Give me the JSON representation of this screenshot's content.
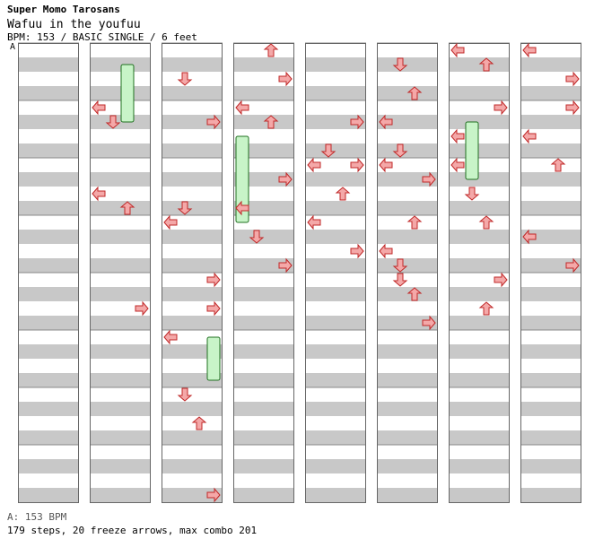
{
  "header": {
    "artist": "Super Momo Tarosans",
    "song": "Wafuu in the youfuu",
    "info": "BPM: 153 / BASIC SINGLE / 6 feet",
    "bpm_marker": "A"
  },
  "footer": {
    "bpm": "A: 153 BPM",
    "stats": "179 steps, 20 freeze arrows, max combo 201"
  },
  "colors": {
    "stripe": "#c8c8c8",
    "arrow_red": "#f4a8a8",
    "arrow_red_stroke": "#c02828",
    "arrow_blue": "#88c4f4",
    "arrow_pink": "#f0b8f0",
    "freeze_fill": "#c8f4c8",
    "freeze_stroke": "#207020"
  },
  "chart_data": {
    "type": "step-chart",
    "columns": 8,
    "measures_per_column": 8,
    "lanes": [
      "left",
      "down",
      "up",
      "right"
    ],
    "arrows": [
      [
        1,
        1,
        0,
        0.0
      ],
      [
        1,
        1,
        1,
        0.25
      ],
      [
        1,
        2,
        0,
        0.5
      ],
      [
        1,
        2,
        2,
        0.75
      ],
      [
        1,
        4,
        3,
        0.5
      ],
      [
        2,
        0,
        1,
        0.5
      ],
      [
        2,
        1,
        3,
        0.25
      ],
      [
        2,
        2,
        1,
        0.75
      ],
      [
        2,
        3,
        0,
        0.0
      ],
      [
        2,
        4,
        3,
        0.0
      ],
      [
        2,
        4,
        3,
        0.5
      ],
      [
        2,
        5,
        0,
        0.0
      ],
      [
        2,
        6,
        1,
        0.0
      ],
      [
        2,
        6,
        2,
        0.5
      ],
      [
        2,
        7,
        3,
        0.75
      ],
      [
        3,
        0,
        2,
        0.0
      ],
      [
        3,
        0,
        3,
        0.5
      ],
      [
        3,
        1,
        0,
        0.0
      ],
      [
        3,
        1,
        2,
        0.25
      ],
      [
        3,
        2,
        3,
        0.25
      ],
      [
        3,
        2,
        0,
        0.75
      ],
      [
        3,
        3,
        1,
        0.25
      ],
      [
        3,
        3,
        3,
        0.75
      ],
      [
        4,
        1,
        3,
        0.25
      ],
      [
        4,
        1,
        1,
        0.75
      ],
      [
        4,
        2,
        0,
        0.0
      ],
      [
        4,
        2,
        3,
        0.0
      ],
      [
        4,
        2,
        2,
        0.5
      ],
      [
        4,
        3,
        0,
        0.0
      ],
      [
        4,
        3,
        3,
        0.5
      ],
      [
        5,
        0,
        1,
        0.25
      ],
      [
        5,
        0,
        2,
        0.75
      ],
      [
        5,
        1,
        0,
        0.25
      ],
      [
        5,
        1,
        1,
        0.75
      ],
      [
        5,
        2,
        0,
        0.0
      ],
      [
        5,
        2,
        3,
        0.25
      ],
      [
        5,
        3,
        2,
        0.0
      ],
      [
        5,
        3,
        0,
        0.5
      ],
      [
        5,
        3,
        1,
        0.75
      ],
      [
        5,
        4,
        1,
        0.0
      ],
      [
        5,
        4,
        2,
        0.25
      ],
      [
        5,
        4,
        3,
        0.75
      ],
      [
        6,
        0,
        0,
        0.0
      ],
      [
        6,
        0,
        2,
        0.25
      ],
      [
        6,
        1,
        3,
        0.0
      ],
      [
        6,
        1,
        0,
        0.5
      ],
      [
        6,
        2,
        0,
        0.0
      ],
      [
        6,
        2,
        1,
        0.5
      ],
      [
        6,
        3,
        2,
        0.0
      ],
      [
        6,
        4,
        3,
        0.0
      ],
      [
        6,
        4,
        2,
        0.5
      ],
      [
        7,
        0,
        0,
        0.0
      ],
      [
        7,
        0,
        3,
        0.5
      ],
      [
        7,
        1,
        3,
        0.0
      ],
      [
        7,
        1,
        0,
        0.5
      ],
      [
        7,
        2,
        2,
        0.0
      ],
      [
        7,
        3,
        0,
        0.25
      ],
      [
        7,
        3,
        3,
        0.75
      ]
    ],
    "freezes": [
      [
        1,
        0,
        2,
        0.25,
        1.0
      ],
      [
        2,
        5,
        3,
        0.0,
        0.75
      ],
      [
        3,
        1,
        0,
        0.5,
        1.5
      ],
      [
        6,
        1,
        1,
        0.25,
        1.0
      ]
    ]
  }
}
